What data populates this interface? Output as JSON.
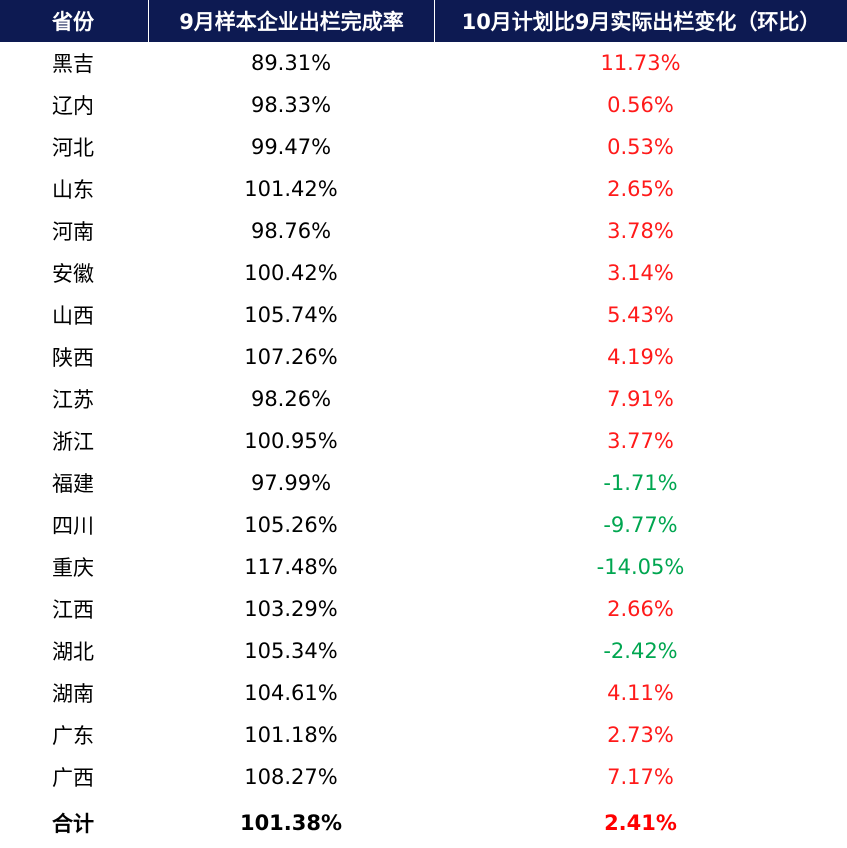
{
  "header": {
    "province": "省份",
    "completion": "9月样本企业出栏完成率",
    "change": "10月计划比9月实际出栏变化（环比）"
  },
  "rows": [
    {
      "province": "黑吉",
      "completion": "89.31%",
      "change": "11.73%",
      "trend": "pos"
    },
    {
      "province": "辽内",
      "completion": "98.33%",
      "change": "0.56%",
      "trend": "pos"
    },
    {
      "province": "河北",
      "completion": "99.47%",
      "change": "0.53%",
      "trend": "pos"
    },
    {
      "province": "山东",
      "completion": "101.42%",
      "change": "2.65%",
      "trend": "pos"
    },
    {
      "province": "河南",
      "completion": "98.76%",
      "change": "3.78%",
      "trend": "pos"
    },
    {
      "province": "安徽",
      "completion": "100.42%",
      "change": "3.14%",
      "trend": "pos"
    },
    {
      "province": "山西",
      "completion": "105.74%",
      "change": "5.43%",
      "trend": "pos"
    },
    {
      "province": "陕西",
      "completion": "107.26%",
      "change": "4.19%",
      "trend": "pos"
    },
    {
      "province": "江苏",
      "completion": "98.26%",
      "change": "7.91%",
      "trend": "pos"
    },
    {
      "province": "浙江",
      "completion": "100.95%",
      "change": "3.77%",
      "trend": "pos"
    },
    {
      "province": "福建",
      "completion": "97.99%",
      "change": "-1.71%",
      "trend": "neg"
    },
    {
      "province": "四川",
      "completion": "105.26%",
      "change": "-9.77%",
      "trend": "neg"
    },
    {
      "province": "重庆",
      "completion": "117.48%",
      "change": "-14.05%",
      "trend": "neg"
    },
    {
      "province": "江西",
      "completion": "103.29%",
      "change": "2.66%",
      "trend": "pos"
    },
    {
      "province": "湖北",
      "completion": "105.34%",
      "change": "-2.42%",
      "trend": "neg"
    },
    {
      "province": "湖南",
      "completion": "104.61%",
      "change": "4.11%",
      "trend": "pos"
    },
    {
      "province": "广东",
      "completion": "101.18%",
      "change": "2.73%",
      "trend": "pos"
    },
    {
      "province": "广西",
      "completion": "108.27%",
      "change": "7.17%",
      "trend": "pos"
    }
  ],
  "total": {
    "province": "合计",
    "completion": "101.38%",
    "change": "2.41%"
  },
  "colors": {
    "header_bg": "#0d1a52",
    "positive": "#ff1a1a",
    "negative": "#00a650"
  }
}
